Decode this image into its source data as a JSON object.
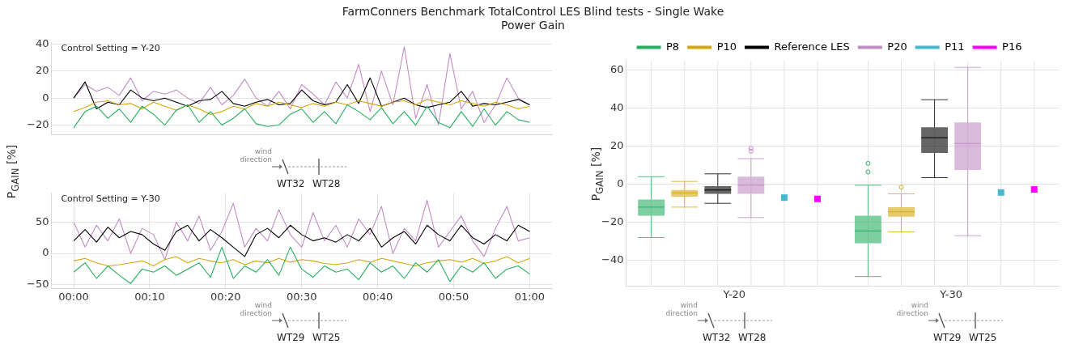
{
  "chart_data": [
    {
      "type": "line",
      "title": "FarmConners Benchmark TotalControl LES Blind tests - Single Wake",
      "subtitle": "Power Gain",
      "ylabel": "P$_{GAIN}$  [%]",
      "annotations": [
        "Control Setting = Y-20",
        "wind direction",
        "WT32",
        "WT28"
      ],
      "x": [
        0,
        0.025,
        0.05,
        0.075,
        0.1,
        0.125,
        0.15,
        0.175,
        0.2,
        0.225,
        0.25,
        0.275,
        0.3,
        0.325,
        0.35,
        0.375,
        0.4,
        0.425,
        0.45,
        0.475,
        0.5,
        0.525,
        0.55,
        0.575,
        0.6,
        0.625,
        0.65,
        0.675,
        0.7,
        0.725,
        0.75,
        0.775,
        0.8,
        0.825,
        0.85,
        0.875,
        0.9,
        0.925,
        0.95,
        0.975,
        1
      ],
      "xlim": [
        -0.049,
        1.049
      ],
      "ylim": [
        -27,
        41
      ],
      "yticks": [
        -20,
        0,
        20,
        40
      ],
      "tick_labels": "y",
      "grid": true,
      "series": [
        {
          "color": "#27ae60",
          "values": [
            -22,
            -10,
            -6,
            -15,
            -8,
            -18,
            -6,
            -12,
            -20,
            -9,
            -5,
            -18,
            -10,
            -20,
            -15,
            -8,
            -19,
            -21,
            -20,
            -12,
            -8,
            -18,
            -10,
            -19,
            -5,
            -10,
            -16,
            -7,
            -19,
            -10,
            -20,
            -6,
            -18,
            -22,
            -10,
            -21,
            -8,
            -20,
            -10,
            -16,
            -18
          ]
        },
        {
          "color": "#d4a80c",
          "values": [
            -10,
            -7,
            -3,
            -2,
            -5,
            -4,
            -8,
            -3,
            -6,
            -9,
            -5,
            -8,
            -12,
            -10,
            -6,
            -8,
            -4,
            -6,
            -3,
            -5,
            -7,
            -4,
            -6,
            -3,
            -5,
            -2,
            -4,
            -6,
            -3,
            -2,
            -5,
            -1,
            -3,
            -5,
            -2,
            -4,
            -6,
            -3,
            -5,
            -8,
            -6
          ]
        },
        {
          "color": "#000000",
          "values": [
            0,
            12,
            -8,
            -3,
            -5,
            6,
            0,
            -2,
            0,
            -3,
            -6,
            -2,
            -1,
            5,
            -4,
            -6,
            -3,
            -1,
            -5,
            -4,
            6,
            -2,
            -5,
            -3,
            10,
            -4,
            15,
            -6,
            -3,
            0,
            -5,
            -7,
            -5,
            -3,
            5,
            -6,
            -4,
            -5,
            -3,
            -1,
            -5
          ]
        },
        {
          "color": "#c18cc3",
          "values": [
            0,
            10,
            5,
            8,
            2,
            15,
            -2,
            5,
            3,
            6,
            0,
            -4,
            8,
            -5,
            2,
            14,
            0,
            -6,
            5,
            -8,
            10,
            3,
            -5,
            12,
            0,
            25,
            -10,
            20,
            -5,
            38,
            -15,
            10,
            -20,
            33,
            -8,
            5,
            -18,
            -5,
            15,
            0,
            -5
          ]
        }
      ]
    },
    {
      "type": "line",
      "annotations": [
        "Control Setting = Y-30",
        "wind direction",
        "WT29",
        "WT25"
      ],
      "x": [
        0,
        0.025,
        0.05,
        0.075,
        0.1,
        0.125,
        0.15,
        0.175,
        0.2,
        0.225,
        0.25,
        0.275,
        0.3,
        0.325,
        0.35,
        0.375,
        0.4,
        0.425,
        0.45,
        0.475,
        0.5,
        0.525,
        0.55,
        0.575,
        0.6,
        0.625,
        0.65,
        0.675,
        0.7,
        0.725,
        0.75,
        0.775,
        0.8,
        0.825,
        0.85,
        0.875,
        0.9,
        0.925,
        0.95,
        0.975,
        1
      ],
      "xlim": [
        -0.049,
        1.049
      ],
      "ylim": [
        -56,
        96
      ],
      "yticks": [
        -50,
        0,
        50
      ],
      "xticks": [
        {
          "value": 0,
          "label": "00:00"
        },
        {
          "value": 0.1667,
          "label": "00:10"
        },
        {
          "value": 0.3333,
          "label": "00:20"
        },
        {
          "value": 0.5,
          "label": "00:30"
        },
        {
          "value": 0.6667,
          "label": "00:40"
        },
        {
          "value": 0.8333,
          "label": "00:50"
        },
        {
          "value": 1,
          "label": "01:00"
        }
      ],
      "grid": true,
      "series": [
        {
          "color": "#27ae60",
          "values": [
            -30,
            -15,
            -40,
            -20,
            -35,
            -48,
            -25,
            -30,
            -20,
            -35,
            -25,
            -15,
            -38,
            10,
            -40,
            -20,
            -30,
            -10,
            -35,
            10,
            -25,
            -38,
            -20,
            -30,
            -25,
            -42,
            -15,
            -30,
            -20,
            -40,
            -15,
            -30,
            -10,
            -45,
            -20,
            -30,
            -15,
            -40,
            -25,
            -20,
            -33
          ]
        },
        {
          "color": "#d4a80c",
          "values": [
            -12,
            -8,
            -15,
            -20,
            -18,
            -15,
            -12,
            -20,
            -10,
            -5,
            -15,
            -8,
            -12,
            -15,
            -10,
            -18,
            -12,
            -15,
            -8,
            -14,
            -10,
            -12,
            -16,
            -18,
            -15,
            -10,
            -14,
            -8,
            -12,
            -16,
            -20,
            -15,
            -12,
            -10,
            -14,
            -8,
            -16,
            -12,
            -5,
            -15,
            -8
          ]
        },
        {
          "color": "#000000",
          "values": [
            20,
            38,
            18,
            42,
            25,
            35,
            30,
            15,
            5,
            35,
            45,
            20,
            38,
            25,
            10,
            -5,
            30,
            40,
            25,
            45,
            30,
            20,
            25,
            18,
            30,
            20,
            40,
            10,
            25,
            35,
            15,
            45,
            30,
            20,
            45,
            25,
            15,
            30,
            20,
            45,
            35
          ]
        },
        {
          "color": "#c18cc3",
          "values": [
            50,
            10,
            45,
            20,
            55,
            0,
            40,
            30,
            -10,
            50,
            20,
            60,
            5,
            35,
            80,
            10,
            40,
            20,
            70,
            30,
            10,
            65,
            20,
            45,
            10,
            55,
            30,
            75,
            0,
            40,
            20,
            85,
            10,
            35,
            60,
            20,
            -5,
            40,
            75,
            20,
            25
          ]
        }
      ]
    },
    {
      "type": "box",
      "ylabel": "P$_{GAIN}$  [%]",
      "categories": [
        "Y-20",
        "Y-30"
      ],
      "annotations": [
        "wind direction",
        "WT32",
        "WT28",
        "wind direction",
        "WT29",
        "WT25"
      ],
      "ylim": [
        -53.5,
        65
      ],
      "yticks": [
        -40,
        -20,
        0,
        20,
        40,
        60
      ],
      "grid": true,
      "legend": "top",
      "series": [
        {
          "name": "P8",
          "color": "#27ae60",
          "boxes": [
            {
              "low": -28,
              "q1": -16.5,
              "median": -12,
              "q3": -8,
              "high": 4
            },
            {
              "low": -48.5,
              "q1": -31,
              "median": -24.5,
              "q3": -16.5,
              "high": -0.5,
              "outliers": [
                6.5,
                11
              ]
            }
          ]
        },
        {
          "name": "P10",
          "color": "#d4a80c",
          "boxes": [
            {
              "low": -12,
              "q1": -6.5,
              "median": -4.5,
              "q3": -3,
              "high": 1.5
            },
            {
              "low": -25,
              "q1": -17,
              "median": -14.5,
              "q3": -12,
              "high": -5,
              "outliers": [
                -1.5
              ]
            }
          ]
        },
        {
          "name": "Reference LES",
          "color": "#000000",
          "boxes": [
            {
              "low": -10,
              "q1": -5,
              "median": -3,
              "q3": -1,
              "high": 5.5
            },
            {
              "low": 3.5,
              "q1": 16.5,
              "median": 24.5,
              "q3": 30,
              "high": 44.5
            }
          ]
        },
        {
          "name": "P20",
          "color": "#c18cc3",
          "boxes": [
            {
              "low": -17.5,
              "q1": -5,
              "median": -0.5,
              "q3": 4,
              "high": 13.5,
              "outliers": [
                17.5,
                19
              ]
            },
            {
              "low": -27,
              "q1": 7.5,
              "median": 21.5,
              "q3": 32.5,
              "high": 61.5
            }
          ]
        },
        {
          "name": "P11",
          "color": "#47b8d0",
          "type": "scatter",
          "marker": "square",
          "x": [
            "Y-20",
            "Y-30"
          ],
          "values": [
            -7,
            -4.3
          ]
        },
        {
          "name": "P16",
          "color": "#ff00ff",
          "type": "scatter",
          "marker": "square",
          "x": [
            "Y-20",
            "Y-30"
          ],
          "values": [
            -7.7,
            -2.7
          ]
        }
      ]
    }
  ]
}
